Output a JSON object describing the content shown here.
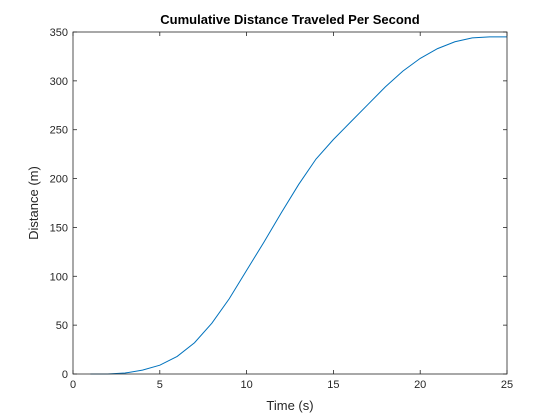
{
  "chart_data": {
    "type": "line",
    "title": "Cumulative Distance Traveled Per Second",
    "xlabel": "Time (s)",
    "ylabel": "Distance (m)",
    "xlim": [
      0,
      25
    ],
    "ylim": [
      0,
      350
    ],
    "xticks": [
      0,
      5,
      10,
      15,
      20,
      25
    ],
    "yticks": [
      0,
      50,
      100,
      150,
      200,
      250,
      300,
      350
    ],
    "grid": false,
    "series": [
      {
        "color": "#0072BD",
        "x": [
          1,
          2,
          3,
          4,
          5,
          6,
          7,
          8,
          9,
          10,
          11,
          12,
          13,
          14,
          15,
          16,
          17,
          18,
          19,
          20,
          21,
          22,
          23,
          24,
          25
        ],
        "y": [
          0,
          0,
          1,
          4,
          9,
          18,
          32,
          52,
          77,
          106,
          135,
          165,
          194,
          220,
          240,
          258,
          276,
          294,
          310,
          323,
          333,
          340,
          344,
          345,
          345
        ]
      }
    ]
  }
}
